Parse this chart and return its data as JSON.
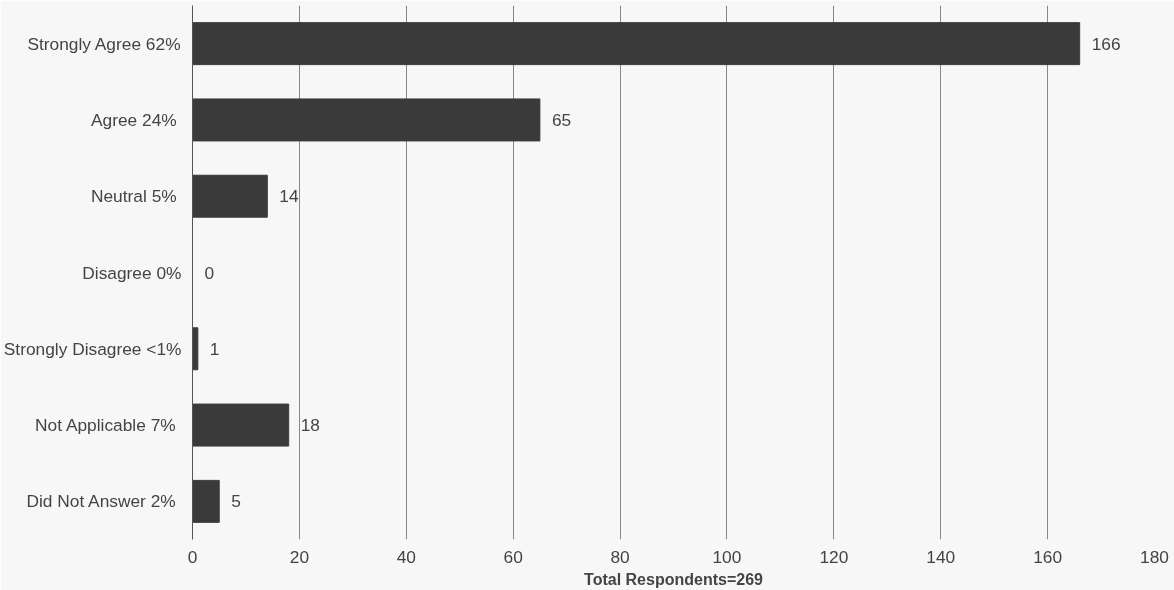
{
  "chart_data": {
    "type": "bar",
    "orientation": "horizontal",
    "xlabel": "Total Respondents=269",
    "categories": [
      "Strongly Agree 62%",
      "Agree  24%",
      "Neutral  5%",
      "Disagree 0%",
      "Strongly Disagree <1%",
      "Not Applicable  7%",
      "Did Not Answer  2%"
    ],
    "values": [
      166,
      65,
      14,
      0,
      1,
      18,
      5
    ],
    "color": "#3a3a3a",
    "xlim": [
      0,
      180
    ],
    "xticks": [
      0,
      20,
      40,
      60,
      80,
      100,
      120,
      140,
      160,
      180
    ],
    "grid": "x",
    "data_labels": true
  }
}
